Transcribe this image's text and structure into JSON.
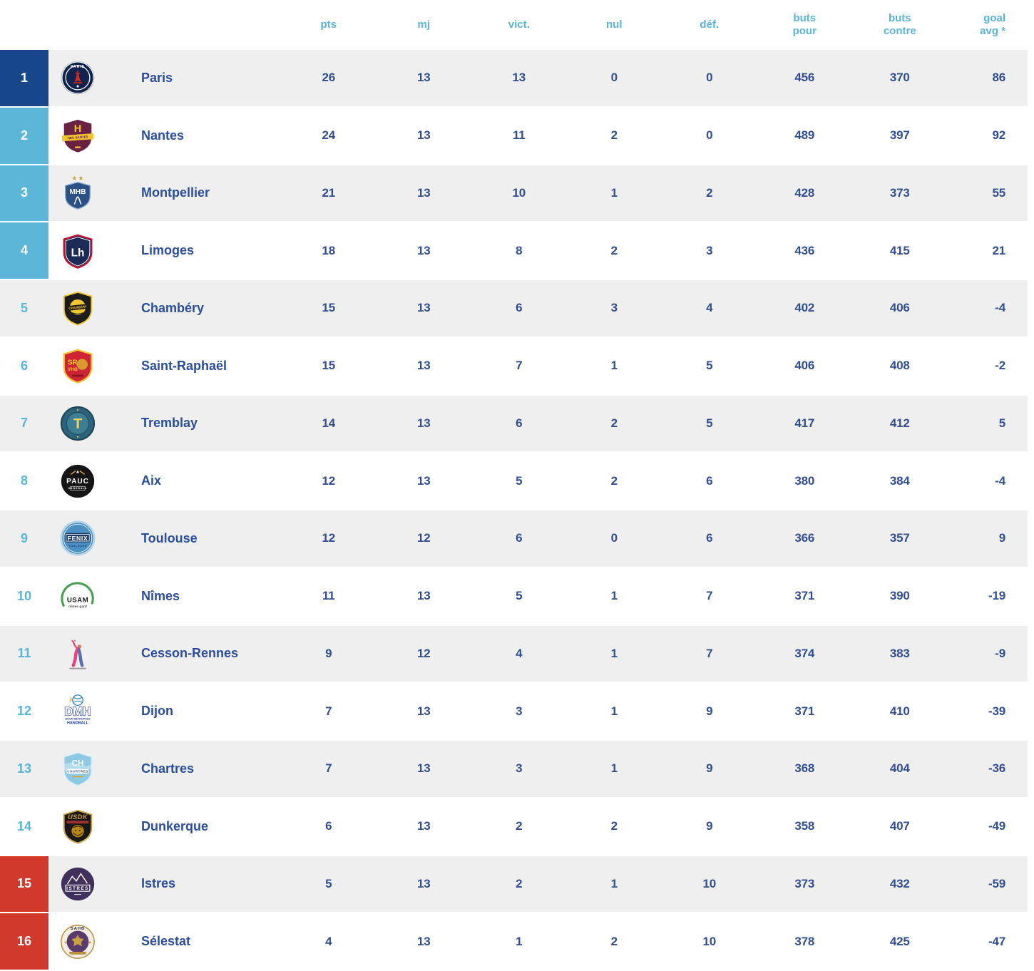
{
  "table": {
    "name": "Classement Starligue",
    "columns": [
      {
        "key": "pts",
        "line1": "pts",
        "line2": ""
      },
      {
        "key": "mj",
        "line1": "mj",
        "line2": ""
      },
      {
        "key": "vict",
        "line1": "vict.",
        "line2": ""
      },
      {
        "key": "nul",
        "line1": "nul",
        "line2": ""
      },
      {
        "key": "def",
        "line1": "déf.",
        "line2": ""
      },
      {
        "key": "bp",
        "line1": "buts",
        "line2": "pour"
      },
      {
        "key": "bc",
        "line1": "buts",
        "line2": "contre"
      },
      {
        "key": "ga",
        "line1": "goal",
        "line2": "avg *"
      }
    ],
    "rows": [
      {
        "rank": 1,
        "zone": "title",
        "key": "paris",
        "name": "Paris",
        "pts": 26,
        "mj": 13,
        "vict": 13,
        "nul": 0,
        "def": 0,
        "bp": 456,
        "bc": 370,
        "ga": 86,
        "logo": {
          "kind": "psg",
          "bg": "#10224e",
          "ring": "#ffffff",
          "text": "PARIS",
          "text_color": "#ffffff",
          "accent": "#da291c"
        }
      },
      {
        "rank": 2,
        "zone": "playoff",
        "key": "nantes",
        "name": "Nantes",
        "pts": 24,
        "mj": 13,
        "vict": 11,
        "nul": 2,
        "def": 0,
        "bp": 489,
        "bc": 397,
        "ga": 92,
        "logo": {
          "kind": "nantes",
          "bg": "#6b2242",
          "band": "#f0c330",
          "text": "H",
          "text_color": "#f0c330",
          "band_text": "HBC NANTES",
          "band_text_color": "#6b2242"
        }
      },
      {
        "rank": 3,
        "zone": "playoff",
        "key": "montpellier",
        "name": "Montpellier",
        "pts": 21,
        "mj": 13,
        "vict": 10,
        "nul": 1,
        "def": 2,
        "bp": 428,
        "bc": 373,
        "ga": 55,
        "logo": {
          "kind": "mhb",
          "bg": "#2a5085",
          "ring": "#8fb0d4",
          "text": "MHB",
          "text_color": "#ffffff",
          "stars": "★ ★",
          "stars_color": "#c9a23f"
        }
      },
      {
        "rank": 4,
        "zone": "playoff",
        "key": "limoges",
        "name": "Limoges",
        "pts": 18,
        "mj": 13,
        "vict": 8,
        "nul": 2,
        "def": 3,
        "bp": 436,
        "bc": 415,
        "ga": 21,
        "logo": {
          "kind": "limoges",
          "bg": "#1c2b55",
          "ring": "#c8102e",
          "text": "Lh",
          "text_color": "#ffffff"
        }
      },
      {
        "rank": 5,
        "zone": "",
        "key": "chambery",
        "name": "Chambéry",
        "pts": 15,
        "mj": 13,
        "vict": 6,
        "nul": 3,
        "def": 4,
        "bp": 402,
        "bc": 406,
        "ga": -4,
        "logo": {
          "kind": "chambery",
          "bg": "#1c1c1c",
          "ring": "#f2c531",
          "text": "CHAMBÉRY",
          "text_color": "#f2c531"
        }
      },
      {
        "rank": 6,
        "zone": "",
        "key": "saint-raphael",
        "name": "Saint-Raphaël",
        "pts": 15,
        "mj": 13,
        "vict": 7,
        "nul": 1,
        "def": 5,
        "bp": 406,
        "bc": 408,
        "ga": -2,
        "logo": {
          "kind": "sr",
          "bg": "#cf2433",
          "ring": "#f2c531",
          "text": "SR",
          "text2": "VHB",
          "text_color": "#f2c531",
          "accent": "#d99a2b"
        }
      },
      {
        "rank": 7,
        "zone": "",
        "key": "tremblay",
        "name": "Tremblay",
        "pts": 14,
        "mj": 13,
        "vict": 6,
        "nul": 2,
        "def": 5,
        "bp": 417,
        "bc": 412,
        "ga": 5,
        "logo": {
          "kind": "tremblay",
          "bg": "#2c637a",
          "ring": "#1b4456",
          "inner": "#3c7e93",
          "text": "T",
          "text_color": "#f4d35e"
        }
      },
      {
        "rank": 8,
        "zone": "",
        "key": "aix",
        "name": "Aix",
        "pts": 12,
        "mj": 13,
        "vict": 5,
        "nul": 2,
        "def": 6,
        "bp": 380,
        "bc": 384,
        "ga": -4,
        "logo": {
          "kind": "pauc",
          "bg": "#151515",
          "text": "PAUC",
          "text_color": "#ffffff",
          "sub": "HANDBALL",
          "accent": "#c9a23f"
        }
      },
      {
        "rank": 9,
        "zone": "",
        "key": "toulouse",
        "name": "Toulouse",
        "pts": 12,
        "mj": 12,
        "vict": 6,
        "nul": 0,
        "def": 6,
        "bp": 366,
        "bc": 357,
        "ga": 9,
        "logo": {
          "kind": "fenix",
          "bg": "#4a90c4",
          "ring": "#b7d6ea",
          "box": "#1d3a63",
          "text": "FENIX",
          "text_color": "#ffffff",
          "sub": "TOULOUSE",
          "sub_color": "#16365c"
        }
      },
      {
        "rank": 10,
        "zone": "",
        "key": "nimes",
        "name": "Nîmes",
        "pts": 11,
        "mj": 13,
        "vict": 5,
        "nul": 1,
        "def": 7,
        "bp": 371,
        "bc": 390,
        "ga": -19,
        "logo": {
          "kind": "usam",
          "arc": "#4a9e4f",
          "text": "USAM",
          "text_color": "#1c1c1c",
          "sub": "nîmes gard",
          "sub_color": "#4a4a4a"
        }
      },
      {
        "rank": 11,
        "zone": "",
        "key": "cesson-rennes",
        "name": "Cesson-Rennes",
        "pts": 9,
        "mj": 12,
        "vict": 4,
        "nul": 1,
        "def": 7,
        "bp": 374,
        "bc": 383,
        "ga": -9,
        "logo": {
          "kind": "cesson",
          "accent": "#e5447e",
          "accent2": "#5a6fb0",
          "head": "#e8795a"
        }
      },
      {
        "rank": 12,
        "zone": "",
        "key": "dijon",
        "name": "Dijon",
        "pts": 7,
        "mj": 13,
        "vict": 3,
        "nul": 1,
        "def": 9,
        "bp": 371,
        "bc": 410,
        "ga": -39,
        "logo": {
          "kind": "dmh",
          "text": "DMH",
          "text_color": "#ffffff",
          "outline": "#1d3a8f",
          "ball": "#2a7fc0",
          "sub": "DIJON MÉTROPOLE",
          "sub2": "HANDBALL",
          "sub_color": "#1d3a8f",
          "flame": "#f0a818"
        }
      },
      {
        "rank": 13,
        "zone": "",
        "key": "chartres",
        "name": "Chartres",
        "pts": 7,
        "mj": 13,
        "vict": 3,
        "nul": 1,
        "def": 9,
        "bp": 368,
        "bc": 404,
        "ga": -36,
        "logo": {
          "kind": "chartres",
          "bg": "#8ec9e4",
          "ring": "#d8eef8",
          "text": "CH",
          "text_color": "#ffffff",
          "band_text": "CHARTRES",
          "band_text_color": "#2a5a7a"
        }
      },
      {
        "rank": 14,
        "zone": "",
        "key": "dunkerque",
        "name": "Dunkerque",
        "pts": 6,
        "mj": 13,
        "vict": 2,
        "nul": 2,
        "def": 9,
        "bp": 358,
        "bc": 407,
        "ga": -49,
        "logo": {
          "kind": "usdk",
          "bg": "#181818",
          "ring": "#c9a23f",
          "text": "USDK",
          "text_color": "#c9a23f",
          "accent": "#b8860b",
          "band": "#a03030"
        }
      },
      {
        "rank": 15,
        "zone": "relegation",
        "key": "istres",
        "name": "Istres",
        "pts": 5,
        "mj": 13,
        "vict": 2,
        "nul": 1,
        "def": 10,
        "bp": 373,
        "bc": 432,
        "ga": -59,
        "logo": {
          "kind": "istres",
          "bg": "#40305c",
          "text": "ISTRES",
          "text_color": "#ffffff"
        }
      },
      {
        "rank": 16,
        "zone": "relegation",
        "key": "selestat",
        "name": "Sélestat",
        "pts": 4,
        "mj": 13,
        "vict": 1,
        "nul": 2,
        "def": 10,
        "bp": 378,
        "bc": 425,
        "ga": -47,
        "logo": {
          "kind": "sahb",
          "bg": "#f3ede2",
          "ring": "#b9913f",
          "inner": "#5a3b6e",
          "text": "SAHB",
          "text_color": "#3a2a4a",
          "accent": "#c9a23f"
        }
      }
    ]
  },
  "colors": {
    "header_text": "#58b5d9",
    "rank_default_text": "#58b5d9",
    "zone_title_bg": "#17468b",
    "zone_playoff_bg": "#5cb6d8",
    "zone_relegation_bg": "#d03a2d",
    "row_alt_bg": "#efefef",
    "value_text": "#304e91",
    "team_name_text": "#2a4d9e"
  }
}
